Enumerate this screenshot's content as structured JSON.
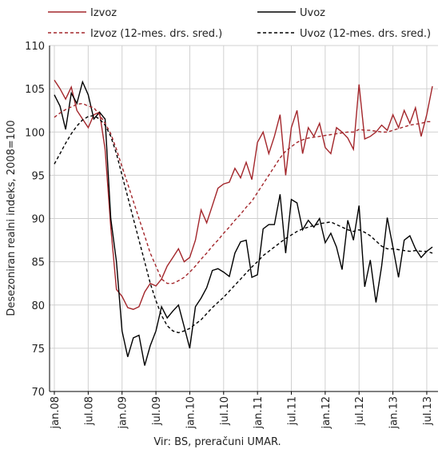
{
  "chart_data": {
    "type": "line",
    "ylabel": "Desezoniran realni indeks, 2008=100",
    "source": "Vir: BS, preračuni UMAR.",
    "categories": [
      "jan.08",
      null,
      null,
      null,
      null,
      null,
      "jul.08",
      null,
      null,
      null,
      null,
      null,
      "jan.09",
      null,
      null,
      null,
      null,
      null,
      "jul.09",
      null,
      null,
      null,
      null,
      null,
      "jan.10",
      null,
      null,
      null,
      null,
      null,
      "jul.10",
      null,
      null,
      null,
      null,
      null,
      "jan.11",
      null,
      null,
      null,
      null,
      null,
      "jul.11",
      null,
      null,
      null,
      null,
      null,
      "jan.12",
      null,
      null,
      null,
      null,
      null,
      "jul.12",
      null,
      null,
      null,
      null,
      null,
      "jan.13",
      null,
      null,
      null,
      null,
      null,
      "jul.13",
      null
    ],
    "series": [
      {
        "name": "Izvoz",
        "color": "#a3262b",
        "dash": false,
        "values": [
          106,
          105,
          103.8,
          105.2,
          102.5,
          101.5,
          100.5,
          102,
          102.3,
          98,
          89,
          81.8,
          81,
          79.7,
          79.5,
          79.8,
          81.5,
          82.5,
          82.2,
          83,
          84.5,
          85.5,
          86.5,
          85,
          85.5,
          87.5,
          91,
          89.5,
          91.5,
          93.5,
          94,
          94.2,
          95.8,
          94.7,
          96.5,
          94.5,
          98.8,
          100,
          97.5,
          99.5,
          102,
          95,
          100.5,
          102.5,
          97.5,
          100.5,
          99.5,
          101,
          98.2,
          97.5,
          100.5,
          100,
          99.3,
          98,
          105.5,
          99.2,
          99.5,
          100,
          100.8,
          100.2,
          102,
          100.5,
          102.5,
          101,
          102.8,
          99.5,
          102,
          105.3
        ]
      },
      {
        "name": "Uvoz",
        "color": "#000000",
        "dash": false,
        "values": [
          104.3,
          103,
          100.3,
          104.5,
          103.3,
          105.8,
          104.3,
          101.5,
          102.3,
          101.5,
          90,
          85,
          77,
          74,
          76.2,
          76.5,
          73,
          75.3,
          77,
          79.8,
          78.5,
          79.3,
          80,
          77.5,
          75,
          79.8,
          80.8,
          82,
          84,
          84.2,
          83.8,
          83.3,
          86,
          87.3,
          87.5,
          83.2,
          83.5,
          88.8,
          89.3,
          89.3,
          92.8,
          86,
          92.2,
          91.8,
          88.7,
          89.8,
          89,
          90,
          87.2,
          88.3,
          86.7,
          84.1,
          89.8,
          87.5,
          91.5,
          82.1,
          85.2,
          80.3,
          84.5,
          90.1,
          86.7,
          83.2,
          87.5,
          88,
          86.5,
          85.5,
          86.2,
          86.7
        ]
      },
      {
        "name": "Izvoz (12-mes. drs. sred.)",
        "color": "#a3262b",
        "dash": true,
        "values": [
          101.7,
          102.2,
          102.6,
          102.9,
          103.2,
          103.3,
          103,
          102.8,
          102,
          101,
          99.8,
          98,
          96,
          94,
          92,
          90,
          88,
          86,
          84.5,
          83,
          82.5,
          82.5,
          82.8,
          83.2,
          83.8,
          84.5,
          85.3,
          86,
          86.8,
          87.5,
          88.3,
          89,
          89.8,
          90.5,
          91.3,
          92,
          93,
          94,
          95,
          96,
          97,
          97.8,
          98.3,
          98.8,
          99.1,
          99.3,
          99.4,
          99.5,
          99.6,
          99.7,
          99.8,
          99.9,
          100,
          100,
          100.3,
          100.2,
          100.2,
          100.1,
          100,
          100,
          100.2,
          100.4,
          100.6,
          100.8,
          100.9,
          101,
          101.2,
          101.2
        ]
      },
      {
        "name": "Uvoz (12-mes. drs. sred.)",
        "color": "#000000",
        "dash": true,
        "values": [
          96.3,
          97.5,
          98.7,
          99.8,
          100.7,
          101.4,
          101.8,
          101.9,
          101.5,
          100.8,
          99.5,
          97.5,
          95,
          92.5,
          90,
          87.5,
          85,
          82.5,
          80.5,
          78.8,
          77.6,
          77,
          76.8,
          77,
          77.3,
          77.8,
          78.3,
          79,
          79.7,
          80.3,
          80.9,
          81.6,
          82.3,
          83,
          83.7,
          84.4,
          85,
          85.7,
          86.2,
          86.7,
          87.2,
          87.7,
          88.1,
          88.5,
          88.8,
          89,
          89.2,
          89.4,
          89.5,
          89.6,
          89.3,
          89,
          88.7,
          88.5,
          88.7,
          88.4,
          88,
          87.4,
          86.8,
          86.5,
          86.5,
          86.4,
          86.3,
          86.2,
          86.3,
          86.2,
          86.2,
          86
        ]
      }
    ],
    "ylim": [
      70,
      110
    ],
    "yticks": [
      70,
      75,
      80,
      85,
      90,
      95,
      100,
      105,
      110
    ],
    "grid": true
  }
}
